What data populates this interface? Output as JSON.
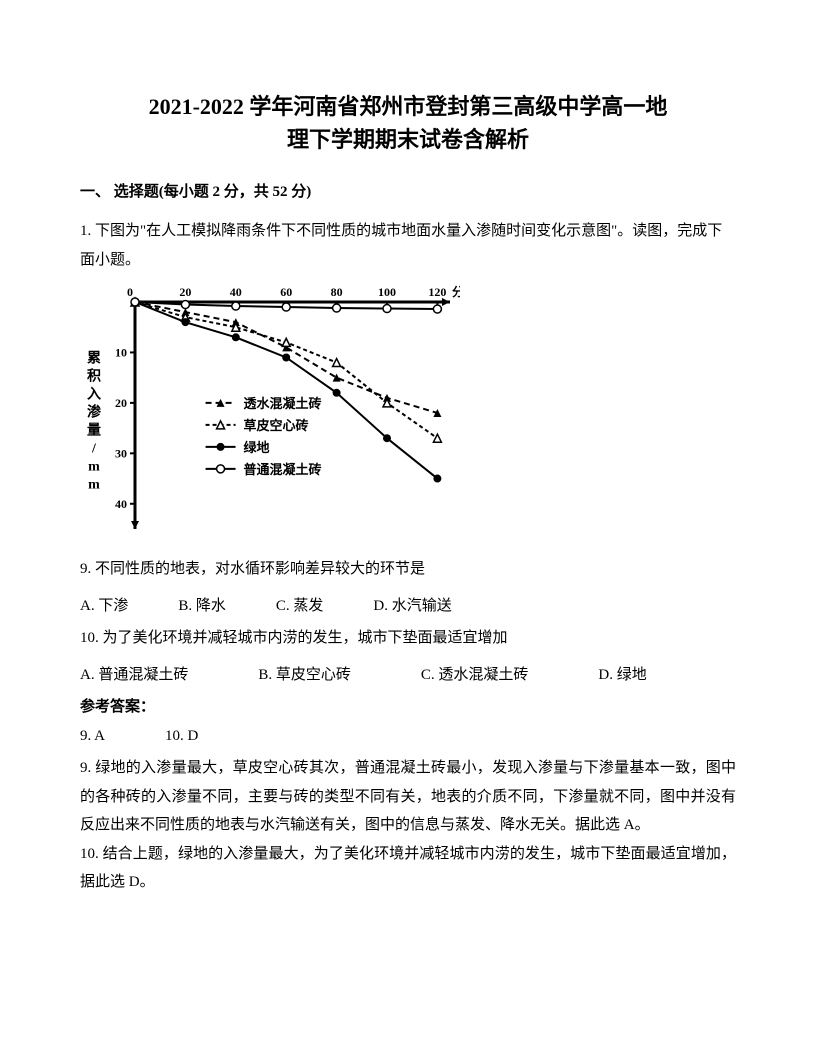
{
  "title_line1": "2021-2022 学年河南省郑州市登封第三高级中学高一地",
  "title_line2": "理下学期期末试卷含解析",
  "section_header": "一、 选择题(每小题 2 分，共 52 分)",
  "question1_intro": "1. 下图为\"在人工模拟降雨条件下不同性质的城市地面水量入渗随时间变化示意图\"。读图，完成下面小题。",
  "chart": {
    "type": "line",
    "x_label": "分钟",
    "y_label": "累积入渗量/mm",
    "x_ticks": [
      "0",
      "20",
      "40",
      "60",
      "80",
      "100",
      "120"
    ],
    "y_ticks": [
      "0",
      "10",
      "20",
      "30",
      "40"
    ],
    "x_range": [
      0,
      125
    ],
    "y_range": [
      0,
      45
    ],
    "background": "#ffffff",
    "axis_color": "#000000",
    "series": [
      {
        "name": "透水混凝土砖",
        "marker": "triangle-filled",
        "dash": "6,4",
        "color": "#000000",
        "points": [
          [
            0,
            0
          ],
          [
            20,
            2
          ],
          [
            40,
            4
          ],
          [
            60,
            9
          ],
          [
            80,
            15
          ],
          [
            100,
            19
          ],
          [
            120,
            22
          ]
        ]
      },
      {
        "name": "草皮空心砖",
        "marker": "triangle-open",
        "dash": "4,3",
        "color": "#000000",
        "points": [
          [
            0,
            0
          ],
          [
            20,
            3
          ],
          [
            40,
            5
          ],
          [
            60,
            8
          ],
          [
            80,
            12
          ],
          [
            100,
            20
          ],
          [
            120,
            27
          ]
        ]
      },
      {
        "name": "绿地",
        "marker": "circle-filled",
        "dash": "none",
        "color": "#000000",
        "points": [
          [
            0,
            0
          ],
          [
            20,
            4
          ],
          [
            40,
            7
          ],
          [
            60,
            11
          ],
          [
            80,
            18
          ],
          [
            100,
            27
          ],
          [
            120,
            35
          ]
        ]
      },
      {
        "name": "普通混凝土砖",
        "marker": "circle-open",
        "dash": "none",
        "color": "#000000",
        "points": [
          [
            0,
            0
          ],
          [
            20,
            0.5
          ],
          [
            40,
            0.8
          ],
          [
            60,
            1
          ],
          [
            80,
            1.2
          ],
          [
            100,
            1.3
          ],
          [
            120,
            1.4
          ]
        ]
      }
    ],
    "legend_fontsize": 13,
    "tick_fontsize": 12,
    "line_width": 2
  },
  "q9": {
    "text": "9. 不同性质的地表，对水循环影响差异较大的环节是",
    "opt_a": "A. 下渗",
    "opt_b": "B. 降水",
    "opt_c": "C. 蒸发",
    "opt_d": "D. 水汽输送"
  },
  "q10": {
    "text": "10. 为了美化环境并减轻城市内涝的发生，城市下垫面最适宜增加",
    "opt_a": "A. 普通混凝土砖",
    "opt_b": "B. 草皮空心砖",
    "opt_c": "C. 透水混凝土砖",
    "opt_d": "D. 绿地"
  },
  "answer_label": "参考答案：",
  "answers": {
    "a9": "9. A",
    "a10": "10. D"
  },
  "explain9": "9. 绿地的入渗量最大，草皮空心砖其次，普通混凝土砖最小，发现入渗量与下渗量基本一致，图中的各种砖的入渗量不同，主要与砖的类型不同有关，地表的介质不同，下渗量就不同，图中并没有反应出来不同性质的地表与水汽输送有关，图中的信息与蒸发、降水无关。据此选 A。",
  "explain10": "10. 结合上题，绿地的入渗量最大，为了美化环境并减轻城市内涝的发生，城市下垫面最适宜增加，据此选 D。"
}
